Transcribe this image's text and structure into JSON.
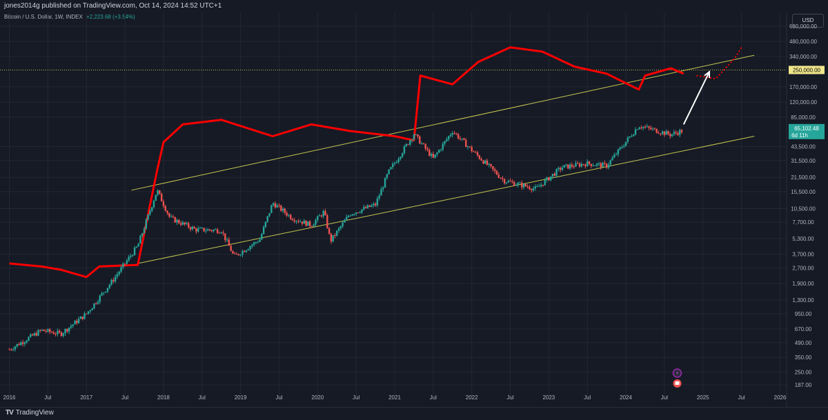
{
  "header": {
    "published": "jones2014g published on TradingView.com, Oct 14, 2024 14:52 UTC+1",
    "symbol": "Bitcoin / U.S. Dollar, 1W, INDEX",
    "change": "+2,223.68 (+3.54%)",
    "currency": "USD"
  },
  "footer": {
    "brand": "TradingView",
    "logo_icon": "tradingview-logo-icon"
  },
  "colors": {
    "background": "#161a25",
    "grid": "#232733",
    "up": "#26a69a",
    "down": "#ef5350",
    "overlay": "#ff0000",
    "channel": "#c8c850",
    "arrow": "#ffffff",
    "target_badge": "#f0e68c",
    "price_badge": "#26a69a"
  },
  "chart_data": {
    "type": "candlestick",
    "title": "Bitcoin / U.S. Dollar, 1W, INDEX",
    "y_scale": "log",
    "ylim": [
      187,
      680000
    ],
    "xlim": [
      "2016-01",
      "2026-01"
    ],
    "y_ticks": [
      "680,000.00",
      "480,000.00",
      "340,000.00",
      "170,000.00",
      "120,000.00",
      "85,000.00",
      "43,500.00",
      "31,500.00",
      "21,500.00",
      "15,500.00",
      "10,500.00",
      "7,700.00",
      "5,300.00",
      "3,700.00",
      "2,700.00",
      "1,900.00",
      "1,300.00",
      "950.00",
      "670.00",
      "490.00",
      "350.00",
      "250.00",
      "187.00"
    ],
    "x_ticks": [
      "2016",
      "Jul",
      "2017",
      "Jul",
      "2018",
      "Jul",
      "2019",
      "Jul",
      "2020",
      "Jul",
      "2021",
      "Jul",
      "2022",
      "Jul",
      "2023",
      "Jul",
      "2024",
      "Jul",
      "2025",
      "Jul",
      "2026"
    ],
    "price_path": [
      [
        "2016-01",
        420
      ],
      [
        "2016-06",
        650
      ],
      [
        "2016-09",
        600
      ],
      [
        "2017-01",
        950
      ],
      [
        "2017-05",
        2000
      ],
      [
        "2017-09",
        4500
      ],
      [
        "2017-12",
        16000
      ],
      [
        "2018-02",
        8500
      ],
      [
        "2018-06",
        6500
      ],
      [
        "2018-10",
        6400
      ],
      [
        "2018-12",
        3500
      ],
      [
        "2019-04",
        5200
      ],
      [
        "2019-06",
        12000
      ],
      [
        "2019-09",
        8500
      ],
      [
        "2019-12",
        7200
      ],
      [
        "2020-02",
        9800
      ],
      [
        "2020-03",
        5000
      ],
      [
        "2020-06",
        9300
      ],
      [
        "2020-10",
        11500
      ],
      [
        "2020-12",
        24000
      ],
      [
        "2021-04",
        58000
      ],
      [
        "2021-07",
        33000
      ],
      [
        "2021-10",
        62000
      ],
      [
        "2022-01",
        40000
      ],
      [
        "2022-06",
        20000
      ],
      [
        "2022-11",
        16500
      ],
      [
        "2023-03",
        27000
      ],
      [
        "2023-07",
        29500
      ],
      [
        "2023-10",
        28000
      ],
      [
        "2024-03",
        70000
      ],
      [
        "2024-08",
        57000
      ],
      [
        "2024-10",
        63000
      ]
    ],
    "overlay_red_line": [
      [
        "2016-01",
        3000
      ],
      [
        "2016-06",
        2800
      ],
      [
        "2016-09",
        2600
      ],
      [
        "2017-01",
        2200
      ],
      [
        "2017-03",
        2800
      ],
      [
        "2017-09",
        2900
      ],
      [
        "2017-12",
        25000
      ],
      [
        "2018-01",
        48000
      ],
      [
        "2018-04",
        72000
      ],
      [
        "2018-10",
        80000
      ],
      [
        "2019-06",
        55000
      ],
      [
        "2019-12",
        72000
      ],
      [
        "2020-06",
        62000
      ],
      [
        "2021-01",
        55000
      ],
      [
        "2021-04",
        50000
      ],
      [
        "2021-05",
        220000
      ],
      [
        "2021-10",
        180000
      ],
      [
        "2022-02",
        300000
      ],
      [
        "2022-07",
        420000
      ],
      [
        "2022-12",
        380000
      ],
      [
        "2023-05",
        270000
      ],
      [
        "2023-10",
        230000
      ],
      [
        "2024-03",
        160000
      ],
      [
        "2024-04",
        220000
      ],
      [
        "2024-08",
        260000
      ],
      [
        "2024-10",
        230000
      ]
    ],
    "projection_dotted": [
      [
        "2024-12",
        220000
      ],
      [
        "2025-03",
        205000
      ],
      [
        "2025-06",
        330000
      ],
      [
        "2025-07",
        420000
      ]
    ],
    "channel_upper": [
      [
        "2017-08",
        16000
      ],
      [
        "2025-09",
        350000
      ]
    ],
    "channel_lower": [
      [
        "2017-09",
        3000
      ],
      [
        "2025-09",
        55000
      ]
    ],
    "horizontal_level": 250000,
    "arrow": [
      [
        "2024-10",
        72000
      ],
      [
        "2025-02",
        240000
      ]
    ],
    "labels": {
      "target_price": "250,000.00",
      "last_price": "65,102.48",
      "countdown": "6d 11h"
    }
  }
}
